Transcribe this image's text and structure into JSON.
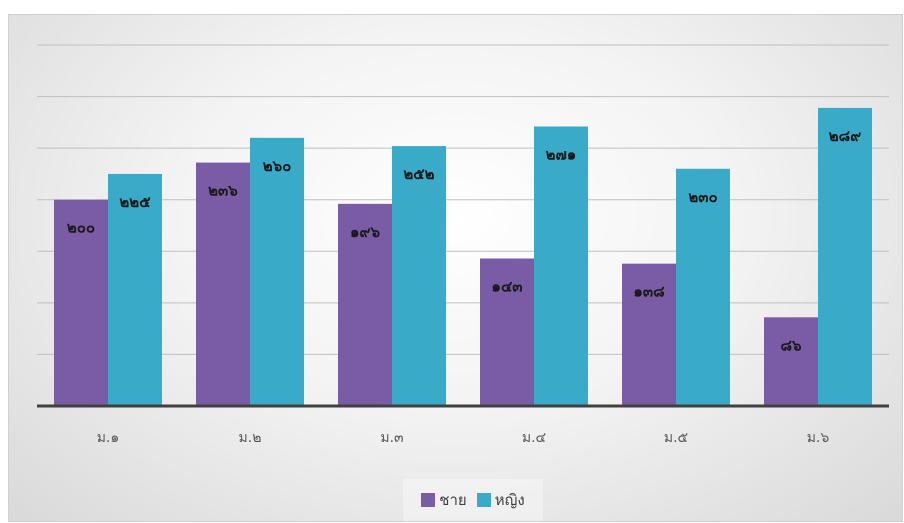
{
  "chart_data": {
    "type": "bar",
    "categories": [
      "ม.๑",
      "ม.๒",
      "ม.๓",
      "ม.๔",
      "ม.๕",
      "ม.๖"
    ],
    "series": [
      {
        "name": "ชาย",
        "values": [
          200,
          236,
          196,
          143,
          138,
          86
        ],
        "labels": [
          "๒๐๐",
          "๒๓๖",
          "๑๙๖",
          "๑๔๓",
          "๑๓๘",
          "๘๖"
        ],
        "color": "#7a5ba6"
      },
      {
        "name": "หญิง",
        "values": [
          225,
          260,
          252,
          271,
          230,
          289
        ],
        "labels": [
          "๒๒๕",
          "๒๖๐",
          "๒๕๒",
          "๒๗๑",
          "๒๓๐",
          "๒๘๙"
        ],
        "color": "#3aaac9"
      }
    ],
    "ylim": [
      0,
      350
    ],
    "grid": true,
    "legend_position": "bottom"
  }
}
